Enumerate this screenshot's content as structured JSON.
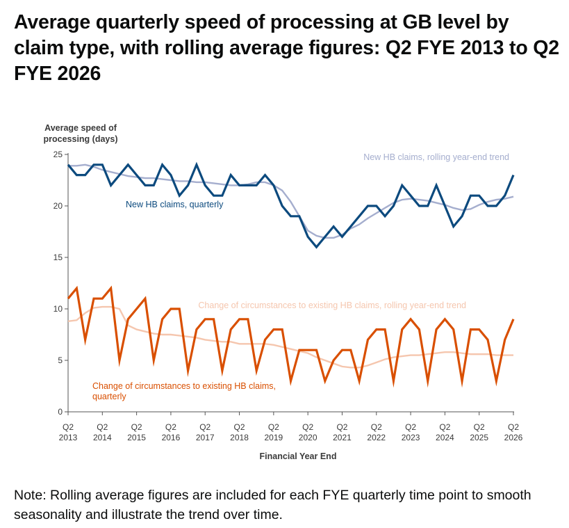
{
  "page": {
    "title": "Average quarterly speed of processing at GB level by claim type, with rolling average figures: Q2 FYE 2013 to Q2 FYE 2026",
    "note": "Note: Rolling average figures are included for each FYE quarterly time point to smooth seasonality and illustrate the trend over time."
  },
  "chart_data": {
    "type": "line",
    "title": "Average quarterly speed of processing at GB level by claim type, with rolling average figures: Q2 FYE 2013 to Q2 FYE 2026",
    "ylabel": "Average speed of processing (days)",
    "ylabel_lines": [
      "Average speed of",
      "processing (days)"
    ],
    "xlabel": "Financial Year End",
    "ylim": [
      0,
      25
    ],
    "yticks": [
      "0",
      "5",
      "10",
      "15",
      "20",
      "25"
    ],
    "xticks": [
      {
        "quarter": "Q2",
        "year": "2013",
        "index": 0
      },
      {
        "quarter": "Q2",
        "year": "2014",
        "index": 4
      },
      {
        "quarter": "Q2",
        "year": "2015",
        "index": 8
      },
      {
        "quarter": "Q2",
        "year": "2016",
        "index": 12
      },
      {
        "quarter": "Q2",
        "year": "2017",
        "index": 16
      },
      {
        "quarter": "Q2",
        "year": "2018",
        "index": 20
      },
      {
        "quarter": "Q2",
        "year": "2019",
        "index": 24
      },
      {
        "quarter": "Q2",
        "year": "2020",
        "index": 28
      },
      {
        "quarter": "Q2",
        "year": "2021",
        "index": 32
      },
      {
        "quarter": "Q2",
        "year": "2022",
        "index": 36
      },
      {
        "quarter": "Q2",
        "year": "2023",
        "index": 40
      },
      {
        "quarter": "Q2",
        "year": "2024",
        "index": 44
      },
      {
        "quarter": "Q2",
        "year": "2025",
        "index": 48
      },
      {
        "quarter": "Q2",
        "year": "2026",
        "index": 52
      }
    ],
    "grid": false,
    "series": [
      {
        "name": "New HB claims, rolling year-end trend",
        "label": "New HB claims, rolling year-end trend",
        "color": "#a5aece",
        "values": [
          23.9,
          23.9,
          24.0,
          23.8,
          23.5,
          23.3,
          23.1,
          22.9,
          22.8,
          22.7,
          22.7,
          22.6,
          22.5,
          22.4,
          22.4,
          22.3,
          22.3,
          22.2,
          22.1,
          22.0,
          22.0,
          22.1,
          22.3,
          22.3,
          22.0,
          21.5,
          20.4,
          19.0,
          17.6,
          17.1,
          16.9,
          16.9,
          17.2,
          17.8,
          18.2,
          18.8,
          19.3,
          19.8,
          20.3,
          20.6,
          20.7,
          20.6,
          20.5,
          20.3,
          20.1,
          19.8,
          19.6,
          19.7,
          20.1,
          20.4,
          20.6,
          20.7,
          20.9
        ]
      },
      {
        "name": "New HB claims, quarterly",
        "label": "New HB claims, quarterly",
        "color": "#0c4a7e",
        "values": [
          24,
          23,
          23,
          24,
          24,
          22,
          23,
          24,
          23,
          22,
          22,
          24,
          23,
          21,
          22,
          24,
          22,
          21,
          21,
          23,
          22,
          22,
          22,
          23,
          22,
          20,
          19,
          19,
          17,
          16,
          17,
          18,
          17,
          18,
          19,
          20,
          20,
          19,
          20,
          22,
          21,
          20,
          20,
          22,
          20,
          18,
          19,
          21,
          21,
          20,
          20,
          21,
          23
        ]
      },
      {
        "name": "Change of circumstances to existing HB claims, rolling year-end trend",
        "label": "Change of circumstances to existing HB claims, rolling year-end trend",
        "color": "#f5c6ae",
        "values": [
          8.8,
          8.9,
          9.6,
          10.1,
          10.2,
          10.2,
          10.0,
          8.4,
          8.0,
          7.8,
          7.6,
          7.5,
          7.5,
          7.4,
          7.3,
          7.2,
          7.0,
          6.9,
          6.8,
          6.8,
          6.6,
          6.6,
          6.6,
          6.6,
          6.5,
          6.3,
          6.1,
          5.9,
          5.7,
          5.3,
          5.0,
          4.7,
          4.4,
          4.3,
          4.3,
          4.5,
          4.8,
          5.1,
          5.3,
          5.4,
          5.5,
          5.5,
          5.6,
          5.7,
          5.8,
          5.8,
          5.7,
          5.6,
          5.6,
          5.6,
          5.5,
          5.5,
          5.5
        ]
      },
      {
        "name": "Change of circumstances to existing HB claims, quarterly",
        "label": "Change of circumstances to existing HB claims, quarterly",
        "label_lines": [
          "Change of circumstances to existing HB claims,",
          "quarterly"
        ],
        "color": "#d94f00",
        "values": [
          11,
          12,
          7,
          11,
          11,
          12,
          5,
          9,
          10,
          11,
          5,
          9,
          10,
          10,
          4,
          8,
          9,
          9,
          4,
          8,
          9,
          9,
          4,
          7,
          8,
          8,
          3,
          6,
          6,
          6,
          3,
          5,
          6,
          6,
          3,
          7,
          8,
          8,
          3,
          8,
          9,
          8,
          3,
          8,
          9,
          8,
          3,
          8,
          8,
          7,
          3,
          7,
          9
        ]
      }
    ]
  }
}
